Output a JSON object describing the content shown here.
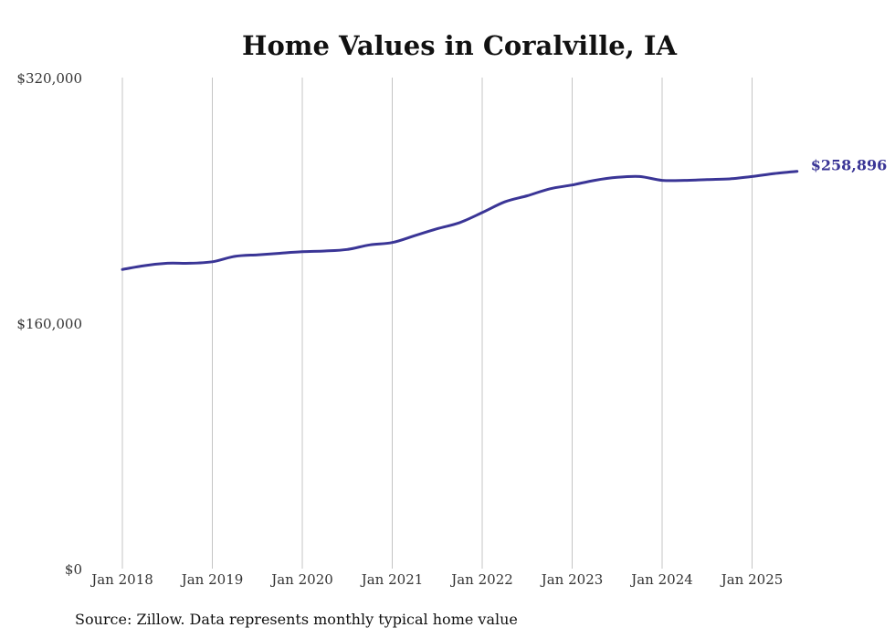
{
  "chart_data": {
    "type": "line",
    "title": "Home Values in Coralville, IA",
    "xlabel": "",
    "ylabel": "",
    "ylim": [
      0,
      320000
    ],
    "yticks": [
      "$0",
      "$160,000",
      "$320,000"
    ],
    "ytick_values": [
      0,
      160000,
      320000
    ],
    "xticks": [
      "Jan 2018",
      "Jan 2019",
      "Jan 2020",
      "Jan 2021",
      "Jan 2022",
      "Jan 2023",
      "Jan 2024",
      "Jan 2025"
    ],
    "xtick_values": [
      2018,
      2019,
      2020,
      2021,
      2022,
      2023,
      2024,
      2025
    ],
    "grid": "vertical",
    "end_label": "$258,896",
    "series": [
      {
        "color": "#3a3596",
        "x": [
          2018.0,
          2018.25,
          2018.5,
          2018.75,
          2019.0,
          2019.25,
          2019.5,
          2019.75,
          2020.0,
          2020.25,
          2020.5,
          2020.75,
          2021.0,
          2021.25,
          2021.5,
          2021.75,
          2022.0,
          2022.25,
          2022.5,
          2022.75,
          2023.0,
          2023.25,
          2023.5,
          2023.75,
          2024.0,
          2024.25,
          2024.5,
          2024.75,
          2025.0,
          2025.25,
          2025.5
        ],
        "values": [
          195000,
          197500,
          199000,
          199000,
          200000,
          203500,
          204500,
          205500,
          206500,
          207000,
          208000,
          211000,
          212500,
          217000,
          221500,
          225500,
          232000,
          239000,
          243000,
          247500,
          250000,
          253000,
          255000,
          255500,
          253000,
          253000,
          253500,
          254000,
          255500,
          257500,
          258896
        ]
      }
    ]
  },
  "source_text": "Source: Zillow. Data represents monthly typical home value"
}
